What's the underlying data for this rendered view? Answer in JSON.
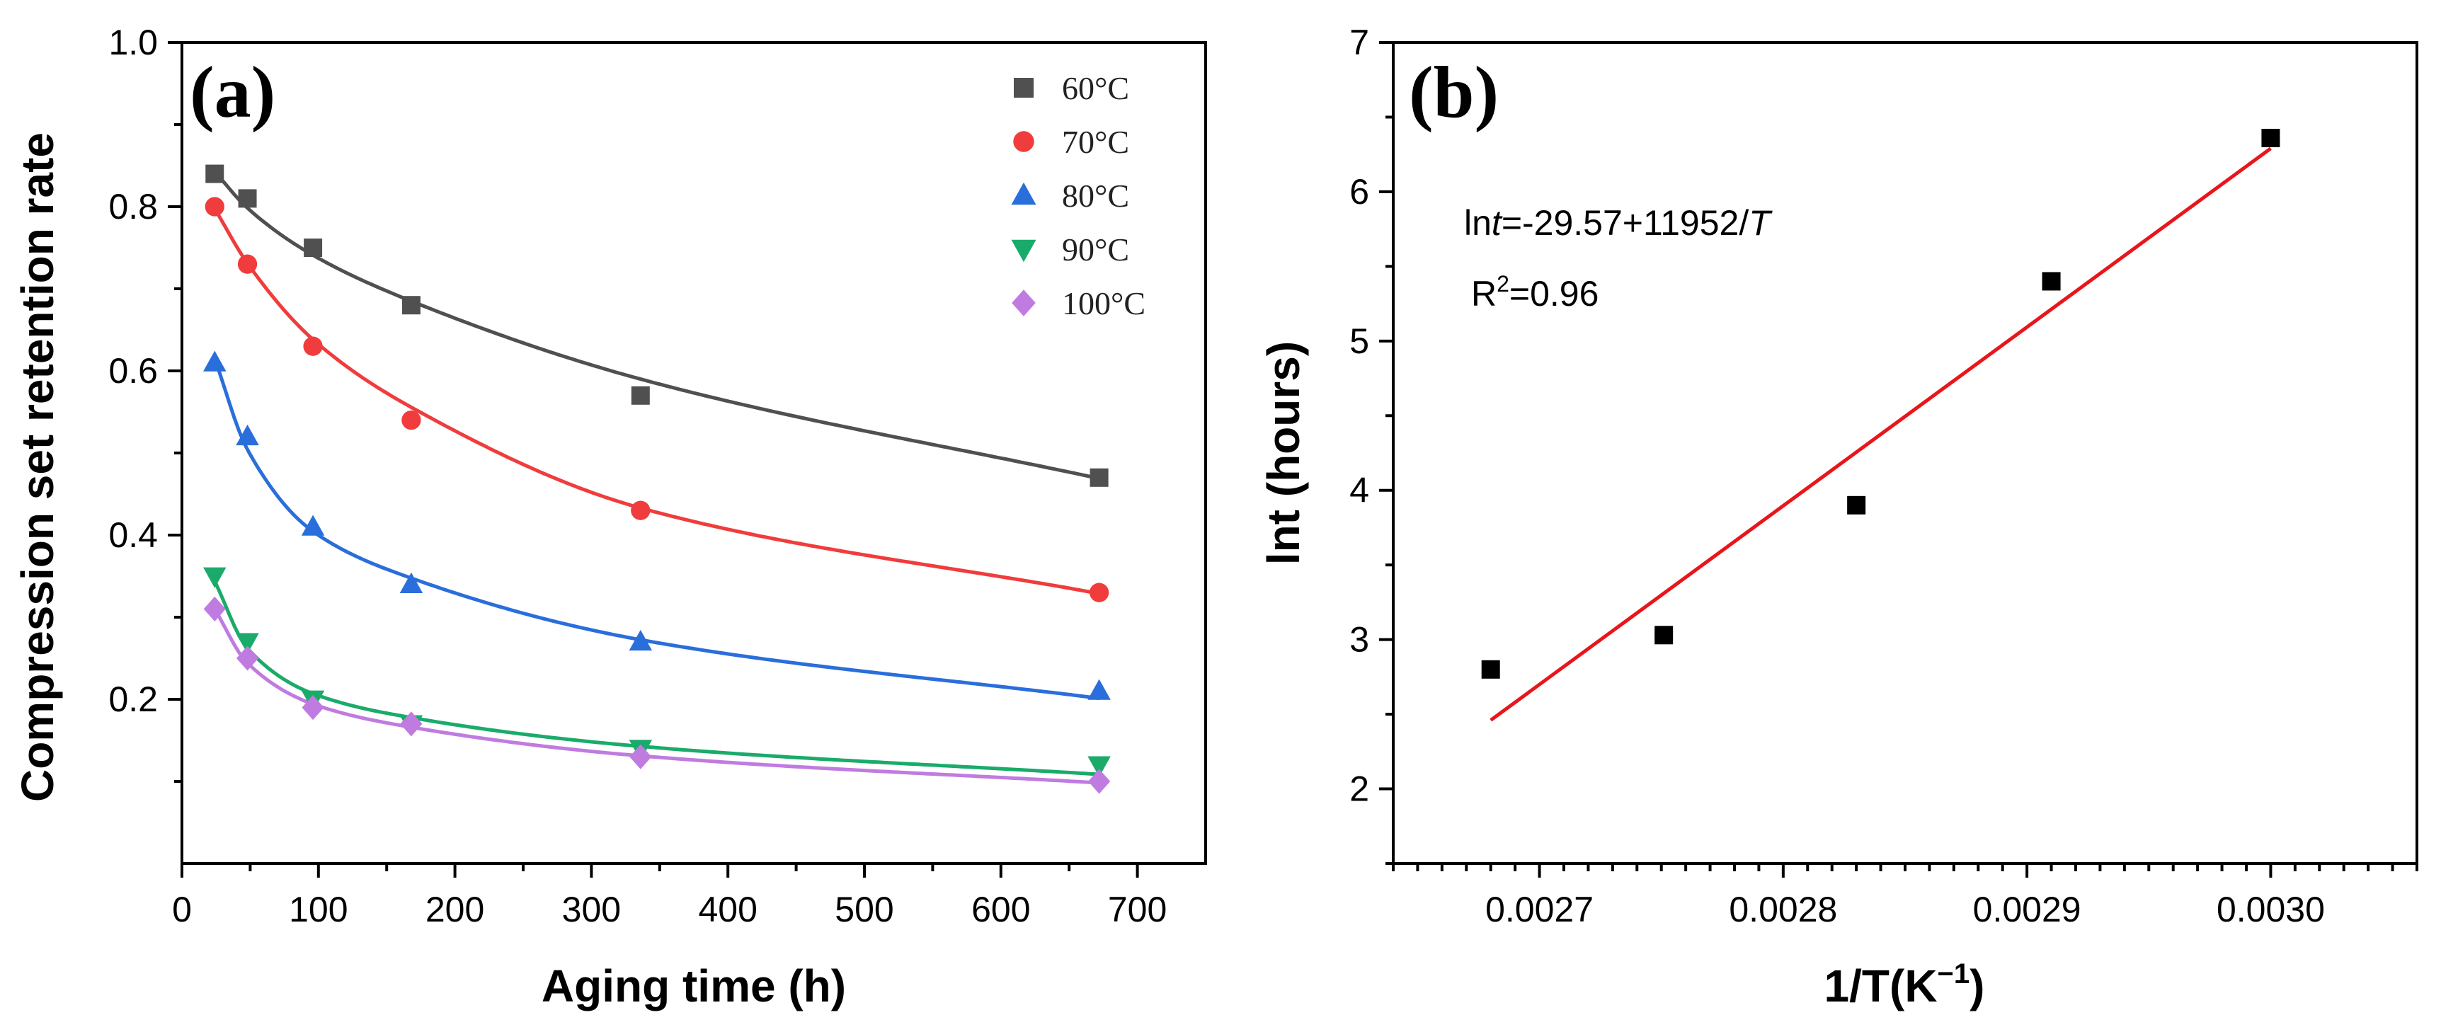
{
  "chart_data": [
    {
      "type": "scatter",
      "panel_label": "(a)",
      "xlabel": "Aging time (h)",
      "ylabel": "Compression set retention rate",
      "xlim": [
        0,
        750
      ],
      "ylim": [
        0.0,
        1.0
      ],
      "xticks": [
        0,
        100,
        200,
        300,
        400,
        500,
        600,
        700
      ],
      "xtick_labels": [
        "0",
        "100",
        "200",
        "300",
        "400",
        "500",
        "600",
        "700"
      ],
      "yticks": [
        0.2,
        0.4,
        0.6,
        0.8,
        1.0
      ],
      "ytick_labels": [
        "0.2",
        "0.4",
        "0.6",
        "0.8",
        "1.0"
      ],
      "legend_position": "top-right",
      "x": [
        24,
        48,
        96,
        168,
        336,
        672
      ],
      "series": [
        {
          "name": "60°C",
          "marker": "square",
          "color": "#505050",
          "values": [
            0.84,
            0.81,
            0.75,
            0.68,
            0.57,
            0.47
          ],
          "fit": [
            0.8428,
            0.7983,
            0.741,
            0.685,
            0.59,
            0.4689
          ]
        },
        {
          "name": "70°C",
          "marker": "circle",
          "color": "#f03c3c",
          "values": [
            0.8,
            0.73,
            0.63,
            0.54,
            0.43,
            0.33
          ],
          "fit": [
            0.7976,
            0.731,
            0.6383,
            0.5557,
            0.433,
            0.3287
          ]
        },
        {
          "name": "80°C",
          "marker": "triangle-up",
          "color": "#2a6edb",
          "values": [
            0.61,
            0.52,
            0.41,
            0.34,
            0.27,
            0.21
          ],
          "fit": [
            0.615,
            0.504,
            0.4045,
            0.3476,
            0.2725,
            0.2012
          ]
        },
        {
          "name": "90°C",
          "marker": "triangle-down",
          "color": "#1aab6a",
          "values": [
            0.35,
            0.27,
            0.2,
            0.17,
            0.14,
            0.12
          ],
          "fit": [
            0.344,
            0.262,
            0.2069,
            0.1777,
            0.1427,
            0.1086
          ]
        },
        {
          "name": "100°C",
          "marker": "diamond",
          "color": "#c07be0",
          "values": [
            0.31,
            0.25,
            0.19,
            0.17,
            0.13,
            0.1
          ],
          "fit": [
            0.31,
            0.244,
            0.1942,
            0.166,
            0.1311,
            0.0982
          ]
        }
      ]
    },
    {
      "type": "scatter",
      "panel_label": "(b)",
      "xlabel_main": "1/T(K",
      "xlabel_sup": "−1",
      "xlabel_end": ")",
      "ylabel": "lnt (hours)",
      "xlim": [
        0.00264,
        0.00306
      ],
      "ylim": [
        1.5,
        7.0
      ],
      "xticks": [
        0.0027,
        0.0028,
        0.0029,
        0.003
      ],
      "xtick_labels": [
        "0.0027",
        "0.0028",
        "0.0029",
        "0.0030"
      ],
      "yticks": [
        2,
        3,
        4,
        5,
        6,
        7
      ],
      "ytick_labels": [
        "2",
        "3",
        "4",
        "5",
        "6",
        "7"
      ],
      "points": {
        "x": [
          0.00268,
          0.002751,
          0.00283,
          0.00291,
          0.003
        ],
        "y": [
          2.8,
          3.03,
          3.9,
          5.4,
          6.36
        ]
      },
      "fit_line": {
        "x": [
          0.00268,
          0.003
        ],
        "y": [
          2.46,
          6.29
        ],
        "color": "#e8161b"
      },
      "equation": {
        "ln": "ln",
        "t": "t",
        "mid": "=-29.57+11952/",
        "T": "T"
      },
      "r2": {
        "r": "R",
        "sup": "2",
        "rest": "=0.96"
      }
    }
  ]
}
